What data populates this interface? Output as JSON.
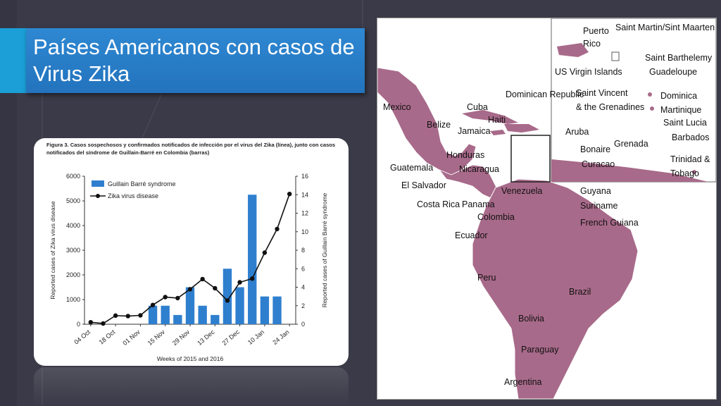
{
  "slide": {
    "title": "Países Americanos con casos de Virus Zika",
    "colors": {
      "background": "#3a3a48",
      "title_box": "#2373bd",
      "accent": "#1b9fd6",
      "map_country": "#a86a8a",
      "bar": "#2f7fcf"
    }
  },
  "figure": {
    "caption": "Figura 3. Casos sospechosos y confirmados notificados de infección por el virus del Zika (línea), junto con casos notificados del síndrome de Guillain-Barré en Colombia (barras)"
  },
  "chart_data": {
    "type": "bar",
    "title": "",
    "xlabel": "Weeks of 2015 and 2016",
    "ylabel_left": "Reported cases of Zika virus disease",
    "ylabel_right": "Reported cases of Guillain Barré syndrome",
    "ylim_left": [
      0,
      6000
    ],
    "ylim_right": [
      0,
      16
    ],
    "yticks_left": [
      "0",
      "1000",
      "2000",
      "3000",
      "4000",
      "5000",
      "6000"
    ],
    "yticks_right": [
      "0",
      "2",
      "4",
      "6",
      "8",
      "10",
      "12",
      "14",
      "16"
    ],
    "xtick_labels": [
      "04 Oct",
      "18 Oct",
      "01 Nov",
      "15 Nov",
      "29 Nov",
      "13 Dec",
      "27 Dec",
      "10 Jan",
      "24 Jan"
    ],
    "legend": {
      "placement": "top-left",
      "bar_label": "Guillain Barré syndrome",
      "line_label": "Zika virus disease"
    },
    "weeks": 17,
    "gbs_bars": [
      0,
      0,
      0,
      0,
      0,
      2,
      2,
      1,
      4,
      2,
      1,
      6,
      4,
      14,
      3,
      3,
      0
    ],
    "zika_line": [
      80,
      30,
      350,
      330,
      360,
      780,
      1100,
      1060,
      1420,
      1830,
      1460,
      960,
      1700,
      1850,
      2900,
      3860,
      5280
    ]
  },
  "map": {
    "labels": [
      "Mexico",
      "Cuba",
      "Haiti",
      "Dominican Republic",
      "Belize",
      "Jamaica",
      "Honduras",
      "Guatemala",
      "El Salvador",
      "Nicaragua",
      "Costa Rica",
      "Panama",
      "Venezuela",
      "Colombia",
      "Ecuador",
      "Peru",
      "Brazil",
      "Bolivia",
      "Paraguay",
      "Argentina",
      "Guyana",
      "Suriname",
      "French Guiana",
      "Aruba",
      "Bonaire",
      "Curacao",
      "Grenada",
      "Trinidad &",
      "Tobago",
      "Puerto",
      "Rico",
      "US Virgin Islands",
      "Saint Martin/Sint Maarten",
      "Saint Barthelemy",
      "Guadeloupe",
      "Saint Vincent",
      "& the Grenadines",
      "Dominica",
      "Martinique",
      "Saint Lucia",
      "Barbados"
    ]
  }
}
